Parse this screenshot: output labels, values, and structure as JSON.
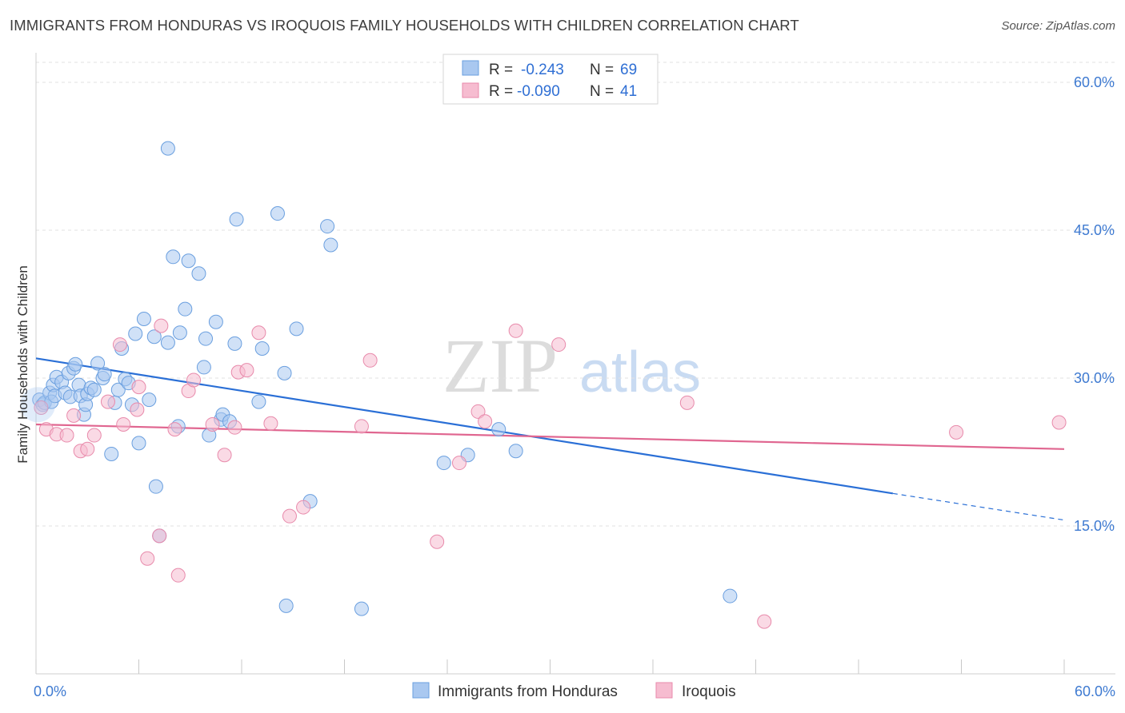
{
  "title": "IMMIGRANTS FROM HONDURAS VS IROQUOIS FAMILY HOUSEHOLDS WITH CHILDREN CORRELATION CHART",
  "source": "Source: ZipAtlas.com",
  "watermark": {
    "zip": "ZIP",
    "atlas": "atlas"
  },
  "legend": {
    "rows": [
      {
        "r_label": "R =",
        "r_value": "-0.243",
        "n_label": "N =",
        "n_value": "69",
        "series": "honduras"
      },
      {
        "r_label": "R =",
        "r_value": "-0.090",
        "n_label": "N =",
        "n_value": "41",
        "series": "iroquois"
      }
    ]
  },
  "colors": {
    "honduras_fill": "#a9c8f0",
    "honduras_stroke": "#6a9fdf",
    "honduras_line": "#2a6fd6",
    "iroquois_fill": "#f6bcd0",
    "iroquois_stroke": "#e88aab",
    "iroquois_line": "#e06690",
    "tick_text": "#3e7ad1",
    "grid": "#e2e2e2"
  },
  "chart_data": {
    "type": "scatter",
    "xlabel": "",
    "ylabel": "Family Households with Children",
    "xlim": [
      0,
      60
    ],
    "ylim": [
      0,
      63
    ],
    "x_tick_labels": [
      {
        "value": 0,
        "label": "0.0%"
      },
      {
        "value": 60,
        "label": "60.0%"
      }
    ],
    "x_minor_ticks": [
      0,
      6,
      12,
      18,
      24,
      30,
      36,
      42,
      48,
      54,
      60
    ],
    "y_ticks": [
      {
        "value": 15,
        "label": "15.0%"
      },
      {
        "value": 30,
        "label": "30.0%"
      },
      {
        "value": 45,
        "label": "45.0%"
      },
      {
        "value": 60,
        "label": "60.0%"
      }
    ],
    "series": [
      {
        "name": "Immigrants from Honduras",
        "key": "honduras",
        "trend": {
          "x0": 0,
          "y0": 32.0,
          "x1": 50,
          "y1": 18.3,
          "dash_to_x": 60,
          "dash_to_y": 15.6
        },
        "points": [
          [
            0.2,
            27.8
          ],
          [
            0.4,
            27.3
          ],
          [
            0.5,
            27.5
          ],
          [
            0.8,
            28.5
          ],
          [
            0.9,
            27.6
          ],
          [
            1.0,
            29.3
          ],
          [
            1.1,
            28.2
          ],
          [
            1.2,
            30.1
          ],
          [
            1.5,
            29.6
          ],
          [
            1.7,
            28.5
          ],
          [
            1.9,
            30.5
          ],
          [
            2.0,
            28.1
          ],
          [
            2.2,
            31.0
          ],
          [
            2.3,
            31.4
          ],
          [
            2.5,
            29.3
          ],
          [
            2.6,
            28.2
          ],
          [
            2.8,
            26.3
          ],
          [
            2.9,
            27.3
          ],
          [
            3.0,
            28.4
          ],
          [
            3.2,
            29.0
          ],
          [
            3.4,
            28.8
          ],
          [
            3.6,
            31.5
          ],
          [
            3.9,
            30.0
          ],
          [
            4.0,
            30.4
          ],
          [
            4.4,
            22.3
          ],
          [
            4.6,
            27.5
          ],
          [
            4.8,
            28.8
          ],
          [
            5.0,
            33.0
          ],
          [
            5.2,
            29.9
          ],
          [
            5.4,
            29.5
          ],
          [
            5.6,
            27.3
          ],
          [
            5.8,
            34.5
          ],
          [
            6.0,
            23.4
          ],
          [
            6.3,
            36.0
          ],
          [
            6.6,
            27.8
          ],
          [
            6.9,
            34.2
          ],
          [
            7.0,
            19.0
          ],
          [
            7.2,
            14.0
          ],
          [
            7.7,
            33.6
          ],
          [
            8.0,
            42.3
          ],
          [
            8.3,
            25.1
          ],
          [
            8.4,
            34.6
          ],
          [
            8.7,
            37.0
          ],
          [
            8.9,
            41.9
          ],
          [
            9.5,
            40.6
          ],
          [
            9.8,
            31.1
          ],
          [
            9.9,
            34.0
          ],
          [
            10.1,
            24.2
          ],
          [
            10.5,
            35.7
          ],
          [
            10.8,
            25.8
          ],
          [
            10.9,
            26.3
          ],
          [
            11.3,
            25.6
          ],
          [
            11.7,
            46.1
          ],
          [
            11.6,
            33.5
          ],
          [
            13.0,
            27.6
          ],
          [
            13.2,
            33.0
          ],
          [
            14.1,
            46.7
          ],
          [
            14.5,
            30.5
          ],
          [
            14.6,
            6.9
          ],
          [
            15.2,
            35.0
          ],
          [
            16.0,
            17.5
          ],
          [
            17.0,
            45.4
          ],
          [
            17.2,
            43.5
          ],
          [
            19.0,
            6.6
          ],
          [
            23.8,
            21.4
          ],
          [
            25.2,
            22.2
          ],
          [
            27.0,
            24.8
          ],
          [
            28.0,
            22.6
          ],
          [
            40.5,
            7.9
          ],
          [
            7.7,
            53.3
          ]
        ]
      },
      {
        "name": "Iroquois",
        "key": "iroquois",
        "trend": {
          "x0": 0,
          "y0": 25.3,
          "x1": 60,
          "y1": 22.8
        },
        "points": [
          [
            0.3,
            27.0
          ],
          [
            0.6,
            24.8
          ],
          [
            1.2,
            24.3
          ],
          [
            1.8,
            24.2
          ],
          [
            2.2,
            26.2
          ],
          [
            2.6,
            22.6
          ],
          [
            3.0,
            22.8
          ],
          [
            3.4,
            24.2
          ],
          [
            4.2,
            27.6
          ],
          [
            4.9,
            33.4
          ],
          [
            5.1,
            25.3
          ],
          [
            5.9,
            26.8
          ],
          [
            6.0,
            29.1
          ],
          [
            6.5,
            11.7
          ],
          [
            7.3,
            35.3
          ],
          [
            7.2,
            14.0
          ],
          [
            8.1,
            24.8
          ],
          [
            8.3,
            10.0
          ],
          [
            8.9,
            28.7
          ],
          [
            9.2,
            29.8
          ],
          [
            10.3,
            25.3
          ],
          [
            11.0,
            22.2
          ],
          [
            11.6,
            25.0
          ],
          [
            11.8,
            30.6
          ],
          [
            12.3,
            30.8
          ],
          [
            13.0,
            34.6
          ],
          [
            13.7,
            25.4
          ],
          [
            14.8,
            16.0
          ],
          [
            15.6,
            16.9
          ],
          [
            19.0,
            25.1
          ],
          [
            19.5,
            31.8
          ],
          [
            23.4,
            13.4
          ],
          [
            24.7,
            21.4
          ],
          [
            25.8,
            26.6
          ],
          [
            26.2,
            25.6
          ],
          [
            28.0,
            34.8
          ],
          [
            30.5,
            33.4
          ],
          [
            38.0,
            27.5
          ],
          [
            42.5,
            5.3
          ],
          [
            53.7,
            24.5
          ],
          [
            59.7,
            25.5
          ]
        ]
      }
    ]
  },
  "bottom_legend": [
    {
      "label": "Immigrants from Honduras",
      "series": "honduras"
    },
    {
      "label": "Iroquois",
      "series": "iroquois"
    }
  ]
}
